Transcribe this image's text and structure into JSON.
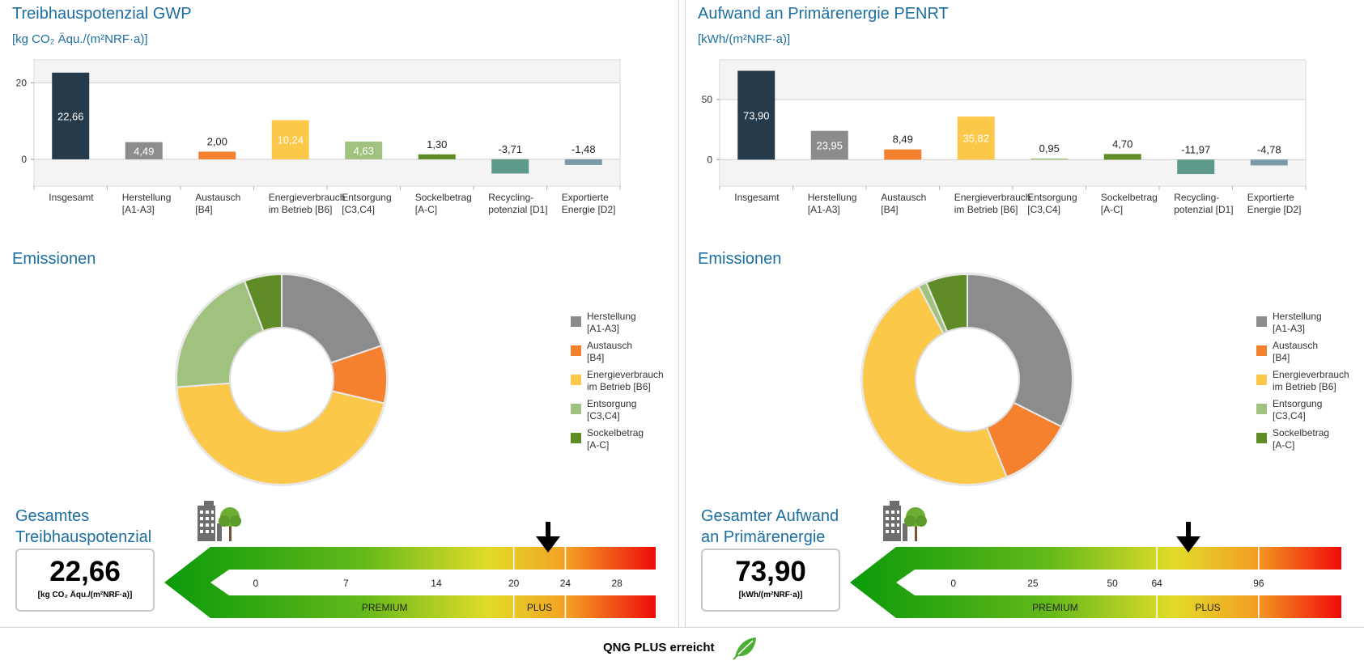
{
  "colors": {
    "insgesamt": "#253a4b",
    "herstellung": "#8c8c8e",
    "austausch": "#f5802e",
    "energie": "#fbc84a",
    "entsorgung": "#a1c17e",
    "sockel": "#5f8c27",
    "recycling": "#5e9a89",
    "export": "#7a9ba5",
    "heading": "#1d6fa1"
  },
  "panels": [
    {
      "title": "Treibhauspotenzial GWP",
      "unit": "[kg CO₂ Äqu./(m²NRF·a)]",
      "emissions_title": "Emissionen",
      "total_title": "Gesamtes\nTreibhauspotenzial",
      "total_value": "22,66",
      "total_unit": "[kg CO₂ Äqu./(m²NRF·a)]"
    },
    {
      "title": "Aufwand an Primärenergie PENRT",
      "unit": "[kWh/(m²NRF·a)]",
      "emissions_title": "Emissionen",
      "total_title": "Gesamter Aufwand\nan Primärenergie",
      "total_value": "73,90",
      "total_unit": "[kWh/(m²NRF·a)]"
    }
  ],
  "legend": [
    {
      "label": "Herstellung\n[A1-A3]",
      "color": "#8c8c8e"
    },
    {
      "label": "Austausch\n[B4]",
      "color": "#f5802e"
    },
    {
      "label": "Energieverbrauch\nim Betrieb [B6]",
      "color": "#fbc84a"
    },
    {
      "label": "Entsorgung\n[C3,C4]",
      "color": "#a1c17e"
    },
    {
      "label": "Sockelbetrag\n[A-C]",
      "color": "#5f8c27"
    }
  ],
  "footer": {
    "status": "QNG PLUS erreicht",
    "icon": "leaf-icon"
  },
  "chart_data": [
    {
      "type": "bar",
      "title": "Treibhauspotenzial GWP",
      "ylabel": "[kg CO₂ Äqu./(m²NRF·a)]",
      "categories": [
        "Insgesamt",
        "Herstellung\n[A1-A3]",
        "Austausch\n[B4]",
        "Energieverbrauch\nim Betrieb [B6]",
        "Entsorgung\n[C3,C4]",
        "Sockelbetrag\n[A-C]",
        "Recycling-\npotenzial [D1]",
        "Exportierte\nEnergie [D2]"
      ],
      "values": [
        22.66,
        4.49,
        2.0,
        10.24,
        4.63,
        1.3,
        -3.71,
        -1.48
      ],
      "value_labels": [
        "22,66",
        "4,49",
        "2,00",
        "10,24",
        "4,63",
        "1,30",
        "-3,71",
        "-1,48"
      ],
      "label_inside": [
        true,
        true,
        false,
        true,
        true,
        false,
        false,
        false
      ],
      "bar_colors": [
        "#253a4b",
        "#8c8c8e",
        "#f5802e",
        "#fbc84a",
        "#a1c17e",
        "#5f8c27",
        "#5e9a89",
        "#7a9ba5"
      ],
      "yticks": [
        0,
        20
      ],
      "ytick_labels": [
        "0",
        "20"
      ],
      "ylim": [
        -7,
        26
      ]
    },
    {
      "type": "bar",
      "title": "Aufwand an Primärenergie PENRT",
      "ylabel": "[kWh/(m²NRF·a)]",
      "categories": [
        "Insgesamt",
        "Herstellung\n[A1-A3]",
        "Austausch\n[B4]",
        "Energieverbrauch\nim Betrieb [B6]",
        "Entsorgung\n[C3,C4]",
        "Sockelbetrag\n[A-C]",
        "Recycling-\npotenzial [D1]",
        "Exportierte\nEnergie [D2]"
      ],
      "values": [
        73.9,
        23.95,
        8.49,
        35.82,
        0.95,
        4.7,
        -11.97,
        -4.78
      ],
      "value_labels": [
        "73,90",
        "23,95",
        "8,49",
        "35,82",
        "0,95",
        "4,70",
        "-11,97",
        "-4,78"
      ],
      "label_inside": [
        true,
        true,
        false,
        true,
        false,
        false,
        false,
        false
      ],
      "bar_colors": [
        "#253a4b",
        "#8c8c8e",
        "#f5802e",
        "#fbc84a",
        "#a1c17e",
        "#5f8c27",
        "#5e9a89",
        "#7a9ba5"
      ],
      "yticks": [
        0,
        50
      ],
      "ytick_labels": [
        "0",
        "50"
      ],
      "ylim": [
        -22,
        83
      ]
    },
    {
      "type": "pie",
      "title": "Emissionen",
      "categories": [
        "Herstellung [A1-A3]",
        "Austausch [B4]",
        "Energieverbrauch im Betrieb [B6]",
        "Entsorgung [C3,C4]",
        "Sockelbetrag [A-C]"
      ],
      "values": [
        4.49,
        2.0,
        10.24,
        4.63,
        1.3
      ],
      "colors": [
        "#8c8c8e",
        "#f5802e",
        "#fbc84a",
        "#a1c17e",
        "#5f8c27"
      ]
    },
    {
      "type": "pie",
      "title": "Emissionen",
      "categories": [
        "Herstellung [A1-A3]",
        "Austausch [B4]",
        "Energieverbrauch im Betrieb [B6]",
        "Entsorgung [C3,C4]",
        "Sockelbetrag [A-C]"
      ],
      "values": [
        23.95,
        8.49,
        35.82,
        0.95,
        4.7
      ],
      "colors": [
        "#8c8c8e",
        "#f5802e",
        "#fbc84a",
        "#a1c17e",
        "#5f8c27"
      ]
    }
  ],
  "scales": [
    {
      "ticks": [
        0,
        7,
        14,
        20,
        24,
        28
      ],
      "tick_labels": [
        "0",
        "7",
        "14",
        "20",
        "24",
        "28"
      ],
      "range": [
        -3.5,
        31
      ],
      "bands": [
        {
          "label": "PREMIUM",
          "from": 0,
          "to": 20
        },
        {
          "label": "PLUS",
          "from": 20,
          "to": 24
        }
      ],
      "marker_value": 22.66
    },
    {
      "ticks": [
        0,
        25,
        50,
        64,
        96
      ],
      "tick_labels": [
        "0",
        "25",
        "50",
        "64",
        "96"
      ],
      "range": [
        -18,
        122
      ],
      "bands": [
        {
          "label": "PREMIUM",
          "from": 0,
          "to": 64
        },
        {
          "label": "PLUS",
          "from": 64,
          "to": 96
        }
      ],
      "marker_value": 73.9
    }
  ]
}
